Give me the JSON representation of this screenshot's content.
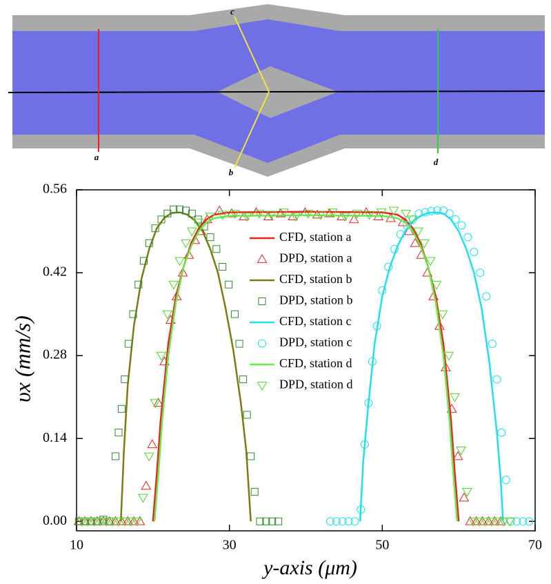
{
  "simulation": {
    "station_labels": [
      "a",
      "b",
      "c",
      "d"
    ]
  },
  "chart_data": {
    "type": "line",
    "x_label": "y-axis (μm)",
    "y_label": "υx (mm/s)",
    "xlim": [
      10,
      70
    ],
    "xticks": [
      10,
      30,
      50,
      70
    ],
    "ylim": [
      -0.016,
      0.56
    ],
    "yticks": [
      {
        "value": 0,
        "label": "0.00"
      },
      0.14,
      0.28,
      0.42,
      0.56
    ],
    "legend": "center",
    "series": [
      {
        "name": "CFD, station a",
        "style": "line",
        "color": "#e8231e",
        "x": [
          20,
          20.5,
          21,
          22,
          23,
          24,
          25,
          26,
          27,
          28,
          30,
          40,
          50,
          52,
          53,
          54,
          55,
          56,
          57,
          58,
          59,
          59.5,
          60
        ],
        "values": [
          0,
          0.08,
          0.17,
          0.3,
          0.38,
          0.43,
          0.47,
          0.495,
          0.51,
          0.518,
          0.522,
          0.523,
          0.522,
          0.518,
          0.51,
          0.495,
          0.47,
          0.43,
          0.38,
          0.3,
          0.17,
          0.08,
          0
        ]
      },
      {
        "name": "DPD, station a",
        "style": "marker",
        "marker": "triangle",
        "color": "#e8231e",
        "x": [
          10.3,
          11.1,
          11.9,
          12.7,
          13.5,
          14.3,
          15.1,
          15.9,
          16.7,
          17.5,
          18.3,
          19.1,
          19.9,
          20.7,
          21.5,
          22.3,
          23.1,
          23.9,
          24.7,
          25.5,
          26.3,
          27.1,
          28.7,
          30.3,
          31.9,
          33.5,
          35.1,
          36.7,
          38.3,
          39.9,
          41.5,
          43.1,
          44.7,
          46.3,
          47.9,
          49.5,
          51.1,
          52.7,
          53.5,
          54.3,
          55.1,
          55.9,
          56.7,
          57.5,
          58.3,
          59.1,
          59.9,
          60.7,
          61.5,
          62.3,
          63.1,
          63.9,
          64.7,
          65.5
        ],
        "values": [
          0,
          0,
          0,
          0,
          0,
          0,
          0,
          0,
          0,
          0,
          0,
          0.06,
          0.13,
          0.2,
          0.27,
          0.34,
          0.38,
          0.42,
          0.45,
          0.475,
          0.49,
          0.51,
          0.525,
          0.52,
          0.515,
          0.522,
          0.515,
          0.52,
          0.515,
          0.522,
          0.518,
          0.52,
          0.515,
          0.51,
          0.522,
          0.515,
          0.512,
          0.505,
          0.49,
          0.47,
          0.45,
          0.42,
          0.38,
          0.33,
          0.26,
          0.19,
          0.11,
          0.04,
          0,
          0,
          0,
          0,
          0,
          0
        ]
      },
      {
        "name": "CFD, station b",
        "style": "line",
        "color": "#7d7a12",
        "x": [
          15.8,
          16.2,
          16.7,
          17.5,
          18.5,
          19.5,
          20.5,
          21.5,
          22.5,
          23.5,
          24.5,
          25.5,
          26.5,
          27.5,
          28.5,
          29.5,
          30.5,
          31.5,
          32.2,
          32.8
        ],
        "values": [
          0,
          0.12,
          0.23,
          0.33,
          0.41,
          0.46,
          0.495,
          0.513,
          0.521,
          0.522,
          0.518,
          0.508,
          0.49,
          0.46,
          0.42,
          0.36,
          0.29,
          0.2,
          0.12,
          0
        ]
      },
      {
        "name": "DPD, station b",
        "style": "marker",
        "marker": "square",
        "color": "#2f8a2f",
        "x": [
          10.3,
          11.1,
          11.9,
          12.7,
          13.5,
          14.3,
          15.1,
          15.5,
          15.9,
          16.3,
          16.8,
          17.4,
          18.1,
          18.8,
          19.5,
          20.3,
          21.1,
          21.9,
          22.7,
          23.5,
          24.3,
          25.1,
          25.9,
          26.7,
          27.5,
          28.3,
          29.1,
          29.9,
          30.7,
          31.3,
          31.8,
          32.3,
          32.8,
          33.3,
          34.0,
          34.8,
          35.6,
          36.4
        ],
        "values": [
          0,
          0,
          0,
          0,
          0.003,
          0,
          0.11,
          0.15,
          0.19,
          0.24,
          0.3,
          0.35,
          0.4,
          0.44,
          0.47,
          0.495,
          0.51,
          0.52,
          0.527,
          0.527,
          0.525,
          0.52,
          0.51,
          0.498,
          0.48,
          0.46,
          0.43,
          0.4,
          0.35,
          0.3,
          0.24,
          0.18,
          0.11,
          0.05,
          0,
          0,
          0,
          0
        ]
      },
      {
        "name": "CFD, station c",
        "style": "line",
        "color": "#22dff0",
        "x": [
          47.1,
          47.5,
          48.2,
          49,
          50,
          51,
          52,
          53,
          54,
          55,
          56,
          57,
          58,
          59,
          60,
          61,
          62,
          63,
          64,
          65,
          65.5,
          65.8
        ],
        "values": [
          0,
          0.1,
          0.2,
          0.3,
          0.38,
          0.43,
          0.465,
          0.49,
          0.507,
          0.516,
          0.521,
          0.522,
          0.52,
          0.51,
          0.49,
          0.46,
          0.42,
          0.36,
          0.27,
          0.15,
          0.07,
          0
        ]
      },
      {
        "name": "DPD, station c",
        "style": "marker",
        "marker": "circle",
        "color": "#22dff0",
        "x": [
          43.2,
          44.0,
          44.8,
          45.6,
          46.4,
          47.2,
          47.7,
          48.2,
          48.7,
          49.3,
          50.0,
          50.8,
          51.6,
          52.4,
          53.2,
          54.0,
          54.8,
          55.6,
          56.4,
          57.2,
          58.0,
          58.8,
          59.6,
          60.4,
          61.2,
          62.0,
          62.8,
          63.6,
          64.4,
          65.0,
          65.6,
          66.2,
          66.8,
          67.6,
          68.4,
          69.2
        ],
        "values": [
          0,
          0,
          0,
          0,
          0,
          0.02,
          0.13,
          0.2,
          0.27,
          0.33,
          0.39,
          0.43,
          0.46,
          0.485,
          0.5,
          0.51,
          0.52,
          0.522,
          0.524,
          0.525,
          0.525,
          0.52,
          0.51,
          0.5,
          0.48,
          0.455,
          0.42,
          0.38,
          0.3,
          0.24,
          0.15,
          0.07,
          0,
          0,
          0,
          0
        ]
      },
      {
        "name": "CFD, station d",
        "style": "line",
        "color": "#6be84a",
        "x": [
          20.2,
          20.7,
          21.2,
          22,
          23,
          24,
          25,
          26,
          27,
          28,
          30,
          40,
          50,
          52,
          53,
          54,
          55,
          56,
          57,
          58,
          58.8,
          59.3,
          59.8
        ],
        "values": [
          0,
          0.08,
          0.17,
          0.28,
          0.37,
          0.43,
          0.465,
          0.49,
          0.505,
          0.512,
          0.516,
          0.517,
          0.516,
          0.512,
          0.505,
          0.49,
          0.465,
          0.43,
          0.37,
          0.28,
          0.17,
          0.08,
          0
        ]
      },
      {
        "name": "DPD, station d",
        "style": "marker",
        "marker": "triangle-down",
        "color": "#4fd62a",
        "x": [
          10.7,
          11.5,
          12.3,
          13.1,
          13.9,
          14.7,
          15.5,
          16.3,
          17.1,
          17.9,
          18.7,
          19.5,
          20.3,
          21.1,
          21.9,
          22.7,
          23.5,
          24.3,
          25.1,
          25.9,
          27.5,
          29.1,
          30.7,
          32.3,
          33.9,
          35.5,
          37.1,
          38.7,
          40.3,
          41.9,
          43.5,
          45.1,
          46.7,
          48.3,
          49.9,
          51.5,
          53.1,
          53.9,
          54.7,
          55.5,
          56.3,
          57.1,
          57.9,
          58.7,
          59.5,
          60.3,
          61.1,
          61.9,
          62.7,
          63.5,
          64.3,
          65.1,
          65.9,
          66.7
        ],
        "values": [
          0,
          0,
          0,
          0,
          0,
          0,
          0,
          0,
          0,
          0,
          0.04,
          0.11,
          0.2,
          0.28,
          0.35,
          0.4,
          0.44,
          0.47,
          0.49,
          0.505,
          0.515,
          0.518,
          0.52,
          0.515,
          0.52,
          0.518,
          0.522,
          0.515,
          0.52,
          0.518,
          0.522,
          0.515,
          0.52,
          0.518,
          0.522,
          0.525,
          0.52,
          0.51,
          0.49,
          0.47,
          0.44,
          0.4,
          0.35,
          0.28,
          0.21,
          0.12,
          0.05,
          0,
          0,
          0,
          0,
          0,
          0,
          0
        ]
      }
    ]
  }
}
